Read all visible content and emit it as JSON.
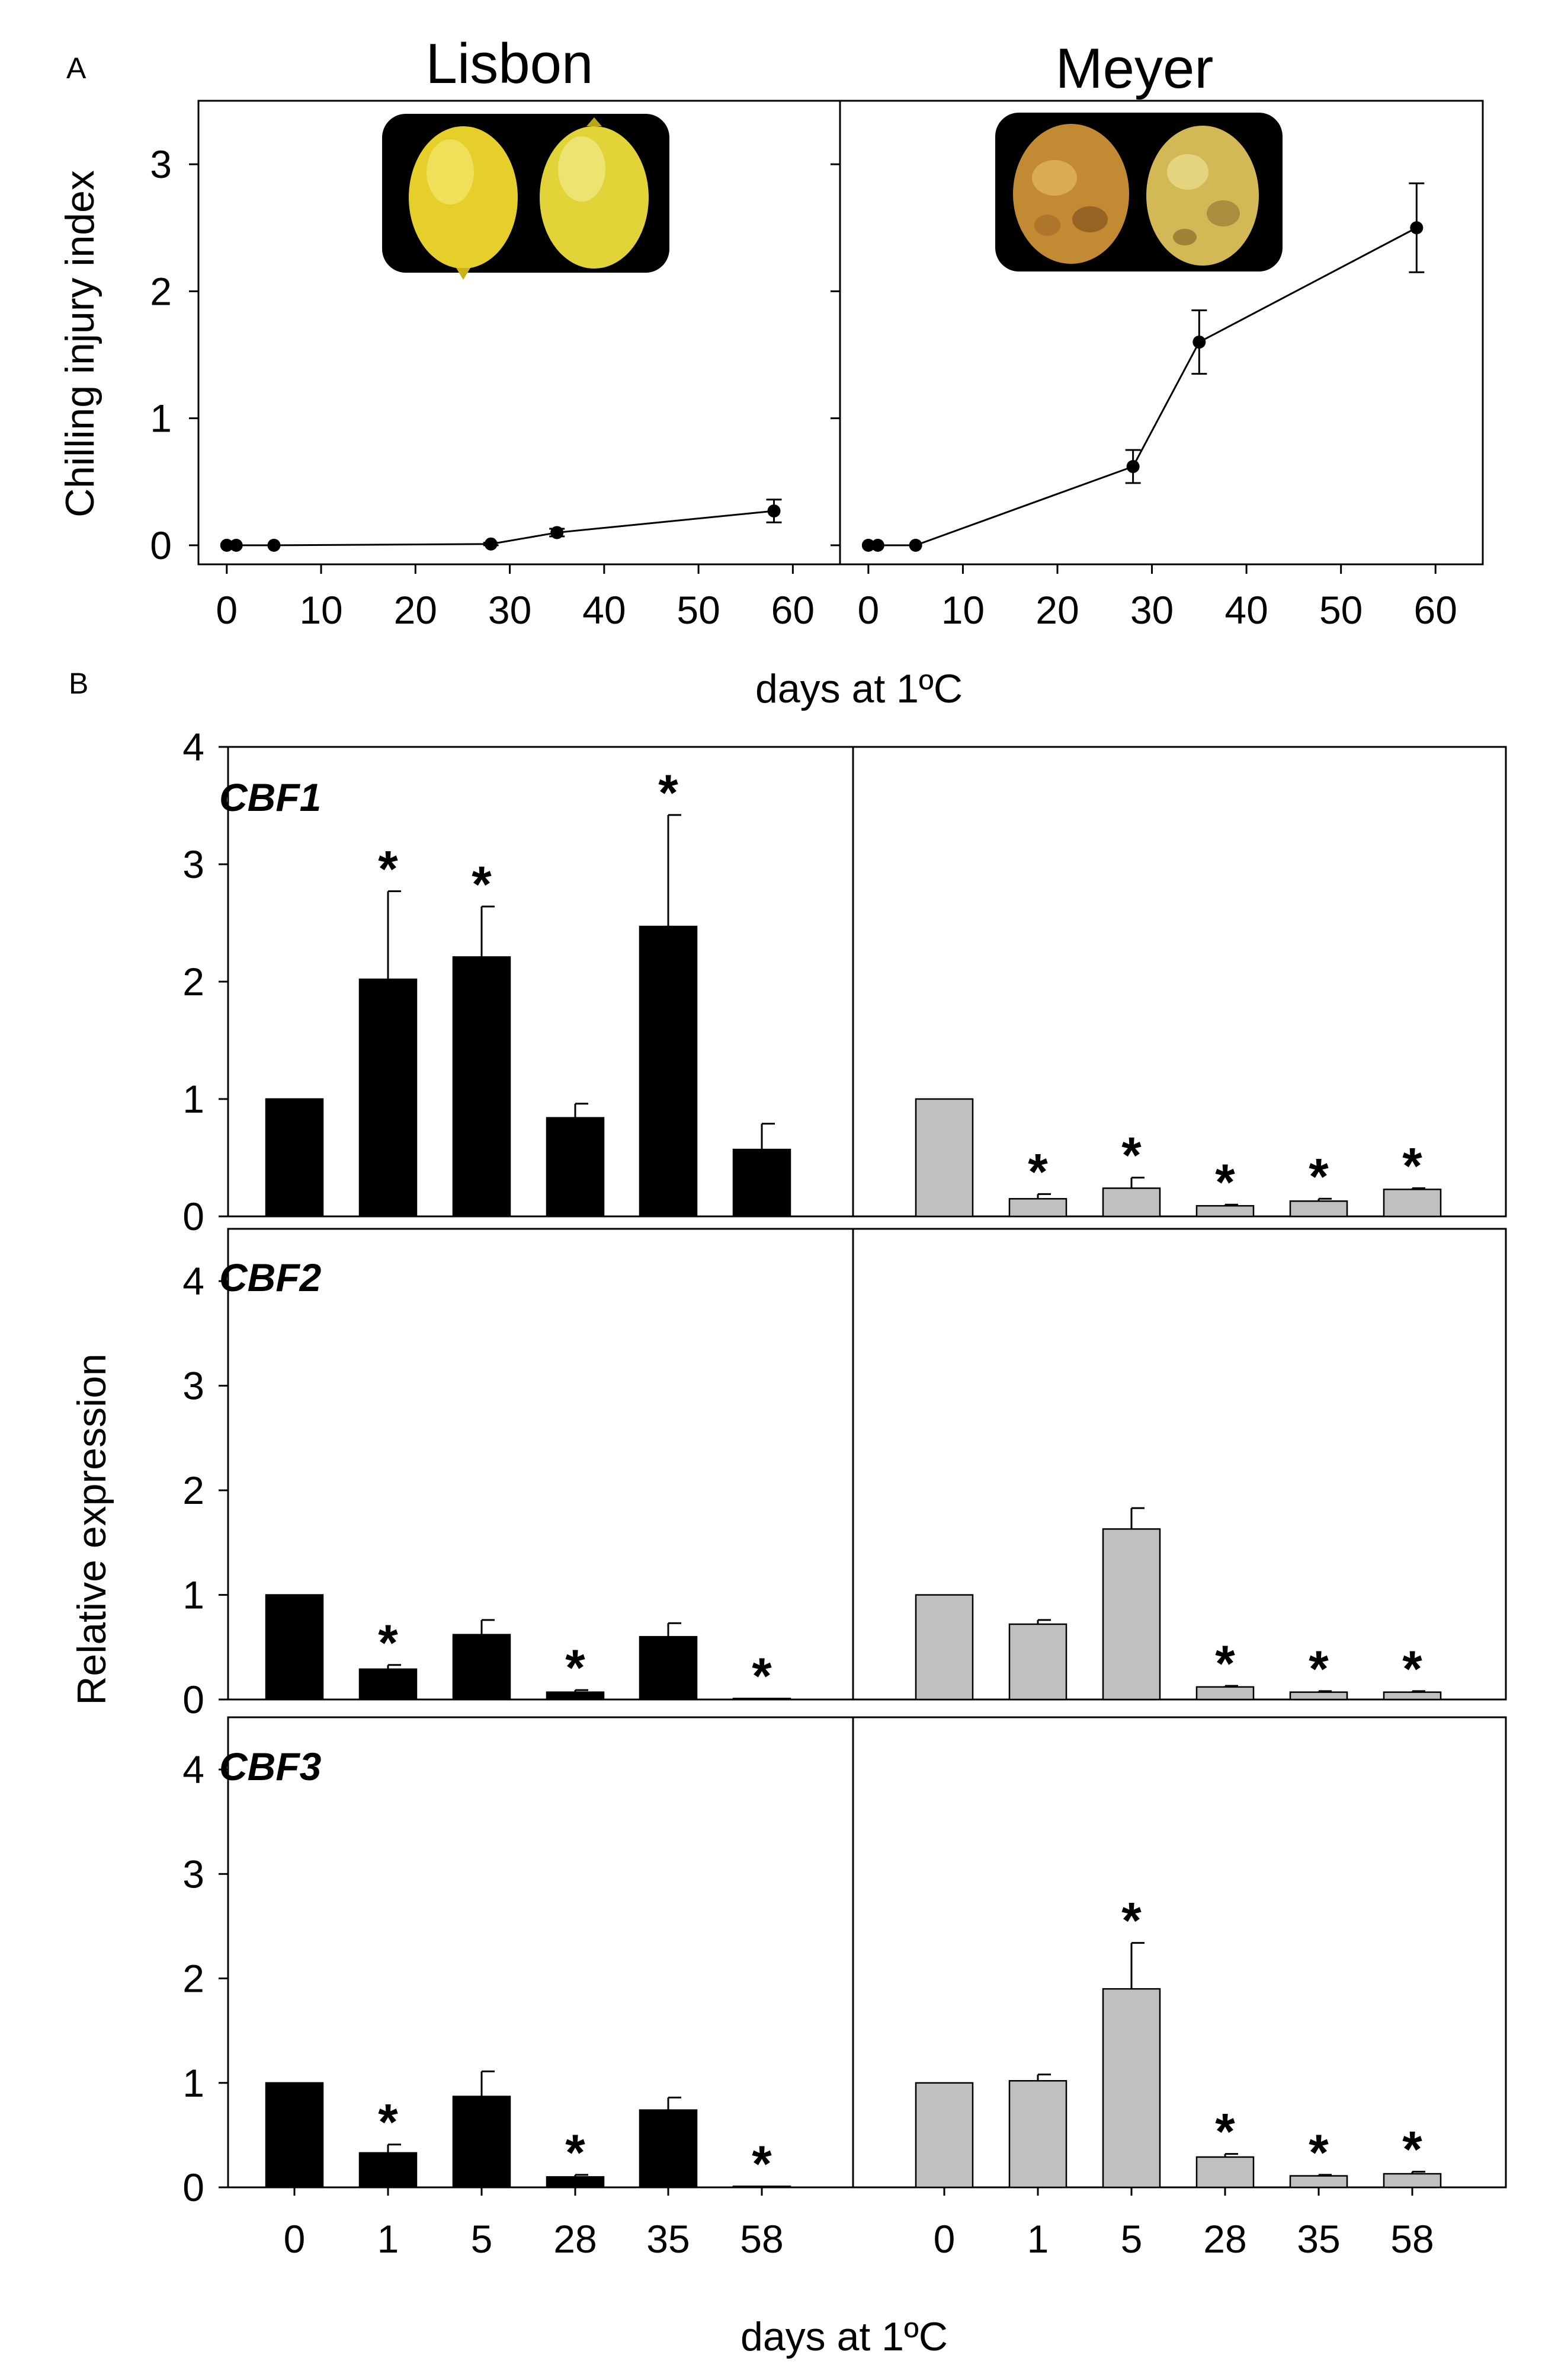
{
  "figure": {
    "panel_a_label": "A",
    "panel_b_label": "B"
  },
  "chart_data": [
    {
      "type": "line",
      "panel": "A",
      "title": "Lisbon",
      "ylabel": "Chilling injury index",
      "xlabel": "days at 1ºC",
      "xlim": [
        -3,
        65
      ],
      "ylim": [
        -0.15,
        3.5
      ],
      "xticks": [
        0,
        10,
        20,
        30,
        40,
        50,
        60
      ],
      "yticks": [
        0,
        1,
        2,
        3
      ],
      "x": [
        0,
        1,
        5,
        28,
        35,
        58
      ],
      "y": [
        0,
        0,
        0,
        0.01,
        0.1,
        0.27
      ],
      "error": [
        0,
        0,
        0,
        0.01,
        0.03,
        0.09
      ],
      "inset_photo": "two yellow lemons on black background"
    },
    {
      "type": "line",
      "panel": "A",
      "title": "Meyer",
      "xlabel": "days at 1ºC",
      "xlim": [
        -3,
        65
      ],
      "ylim": [
        -0.15,
        3.5
      ],
      "xticks": [
        0,
        10,
        20,
        30,
        40,
        50,
        60
      ],
      "x": [
        0,
        1,
        5,
        28,
        35,
        58
      ],
      "y": [
        0,
        0,
        0,
        0.62,
        1.6,
        2.5
      ],
      "error": [
        0,
        0,
        0,
        0.13,
        0.25,
        0.35
      ],
      "inset_photo": "two brown-spotted lemons on black background"
    },
    {
      "type": "bar",
      "panel": "B",
      "gene": "CBF1",
      "cultivar": "Lisbon",
      "ylabel": "Relative expression",
      "categories": [
        "0",
        "1",
        "5",
        "28",
        "35",
        "58"
      ],
      "values": [
        1.0,
        2.02,
        2.21,
        0.84,
        2.47,
        0.57
      ],
      "error": [
        0,
        0.75,
        0.43,
        0.12,
        0.95,
        0.22
      ],
      "significant": [
        false,
        true,
        true,
        false,
        true,
        false
      ],
      "ylim": [
        0,
        4
      ],
      "yticks": [
        0,
        1,
        2,
        3,
        4
      ],
      "color": "#000000"
    },
    {
      "type": "bar",
      "panel": "B",
      "gene": "CBF1",
      "cultivar": "Meyer",
      "categories": [
        "0",
        "1",
        "5",
        "28",
        "35",
        "58"
      ],
      "values": [
        1.0,
        0.15,
        0.24,
        0.09,
        0.13,
        0.23
      ],
      "error": [
        0,
        0.04,
        0.09,
        0.01,
        0.02,
        0.01
      ],
      "significant": [
        false,
        true,
        true,
        true,
        true,
        true
      ],
      "ylim": [
        0,
        4
      ],
      "color": "#c0c0c0"
    },
    {
      "type": "bar",
      "panel": "B",
      "gene": "CBF2",
      "cultivar": "Lisbon",
      "categories": [
        "0",
        "1",
        "5",
        "28",
        "35",
        "58"
      ],
      "values": [
        1.0,
        0.29,
        0.62,
        0.07,
        0.6,
        0.01
      ],
      "error": [
        0,
        0.04,
        0.14,
        0.02,
        0.13,
        0.0
      ],
      "significant": [
        false,
        true,
        false,
        true,
        false,
        true
      ],
      "ylim": [
        0,
        4.5
      ],
      "yticks": [
        0,
        1,
        2,
        3,
        4
      ],
      "color": "#000000"
    },
    {
      "type": "bar",
      "panel": "B",
      "gene": "CBF2",
      "cultivar": "Meyer",
      "categories": [
        "0",
        "1",
        "5",
        "28",
        "35",
        "58"
      ],
      "values": [
        1.0,
        0.72,
        1.63,
        0.12,
        0.07,
        0.07
      ],
      "error": [
        0,
        0.04,
        0.2,
        0.01,
        0.01,
        0.01
      ],
      "significant": [
        false,
        false,
        false,
        true,
        true,
        true
      ],
      "ylim": [
        0,
        4.5
      ],
      "color": "#c0c0c0"
    },
    {
      "type": "bar",
      "panel": "B",
      "gene": "CBF3",
      "cultivar": "Lisbon",
      "xlabel": "days at 1ºC",
      "categories": [
        "0",
        "1",
        "5",
        "28",
        "35",
        "58"
      ],
      "values": [
        1.0,
        0.33,
        0.87,
        0.1,
        0.74,
        0.01
      ],
      "error": [
        0,
        0.08,
        0.24,
        0.02,
        0.12,
        0.0
      ],
      "significant": [
        false,
        true,
        false,
        true,
        false,
        true
      ],
      "ylim": [
        0,
        4.5
      ],
      "yticks": [
        0,
        1,
        2,
        3,
        4
      ],
      "color": "#000000"
    },
    {
      "type": "bar",
      "panel": "B",
      "gene": "CBF3",
      "cultivar": "Meyer",
      "xlabel": "days at 1ºC",
      "categories": [
        "0",
        "1",
        "5",
        "28",
        "35",
        "58"
      ],
      "values": [
        1.0,
        1.02,
        1.9,
        0.29,
        0.11,
        0.13
      ],
      "error": [
        0,
        0.06,
        0.44,
        0.03,
        0.01,
        0.02
      ],
      "significant": [
        false,
        false,
        true,
        true,
        true,
        true
      ],
      "ylim": [
        0,
        4.5
      ],
      "color": "#c0c0c0"
    }
  ]
}
